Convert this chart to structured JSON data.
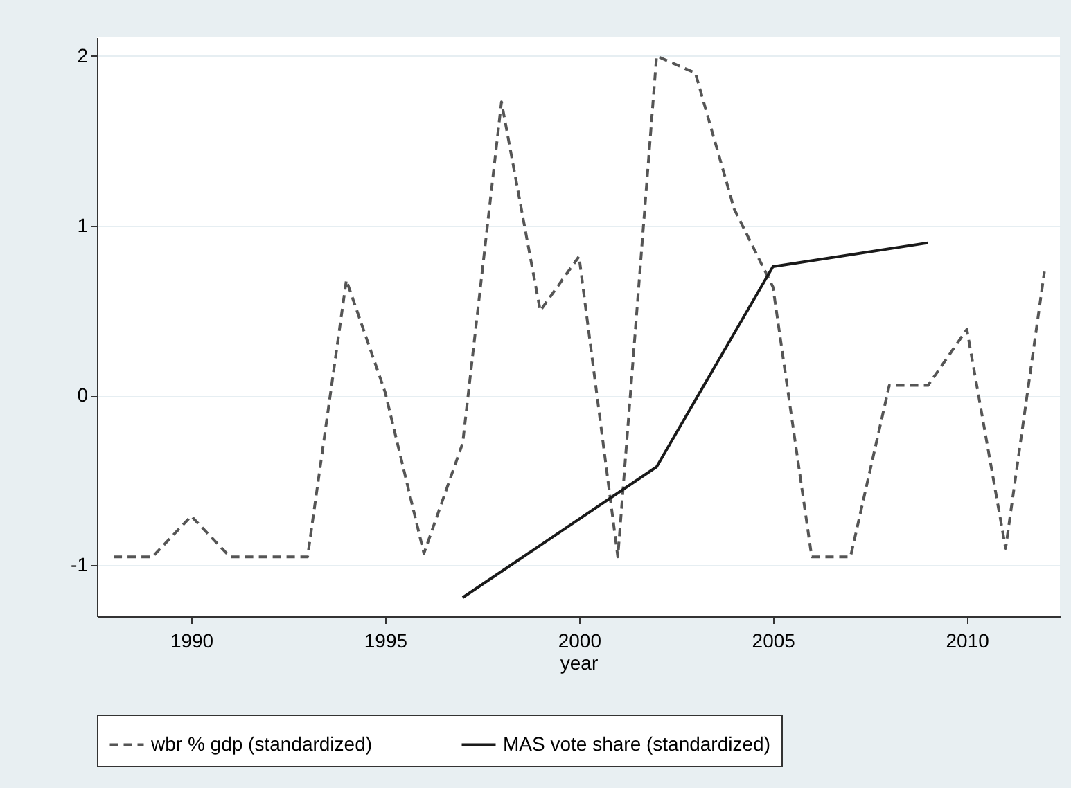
{
  "chart_data": {
    "type": "line",
    "xlabel": "year",
    "x": [
      1988,
      1989,
      1990,
      1991,
      1992,
      1993,
      1994,
      1995,
      1996,
      1997,
      1998,
      1999,
      2000,
      2001,
      2002,
      2003,
      2004,
      2005,
      2006,
      2007,
      2008,
      2009,
      2010,
      2011,
      2012
    ],
    "series": [
      {
        "name": "wbr % gdp (standardized)",
        "color": "#555555",
        "line_style": "dashed",
        "values": [
          -0.95,
          -0.95,
          -0.71,
          -0.95,
          -0.95,
          -0.95,
          0.68,
          0.02,
          -0.93,
          -0.28,
          1.73,
          0.5,
          0.82,
          -0.95,
          2.0,
          1.9,
          1.1,
          0.64,
          -0.95,
          -0.95,
          0.06,
          0.06,
          0.39,
          -0.9,
          0.73
        ]
      },
      {
        "name": "MAS vote share (standardized)",
        "color": "#1a1a1a",
        "line_style": "solid",
        "x": [
          1997,
          2002,
          2005,
          2009
        ],
        "values": [
          -1.19,
          -0.42,
          0.76,
          0.9
        ]
      }
    ],
    "xlim": [
      1987.57,
      2012.4
    ],
    "xticks": [
      1990,
      1995,
      2000,
      2005,
      2010
    ],
    "ylim": [
      -1.3,
      2.11
    ],
    "yticks": [
      -1,
      0,
      1,
      2
    ],
    "grid": "y",
    "legend": "bottom",
    "marker": "none"
  }
}
